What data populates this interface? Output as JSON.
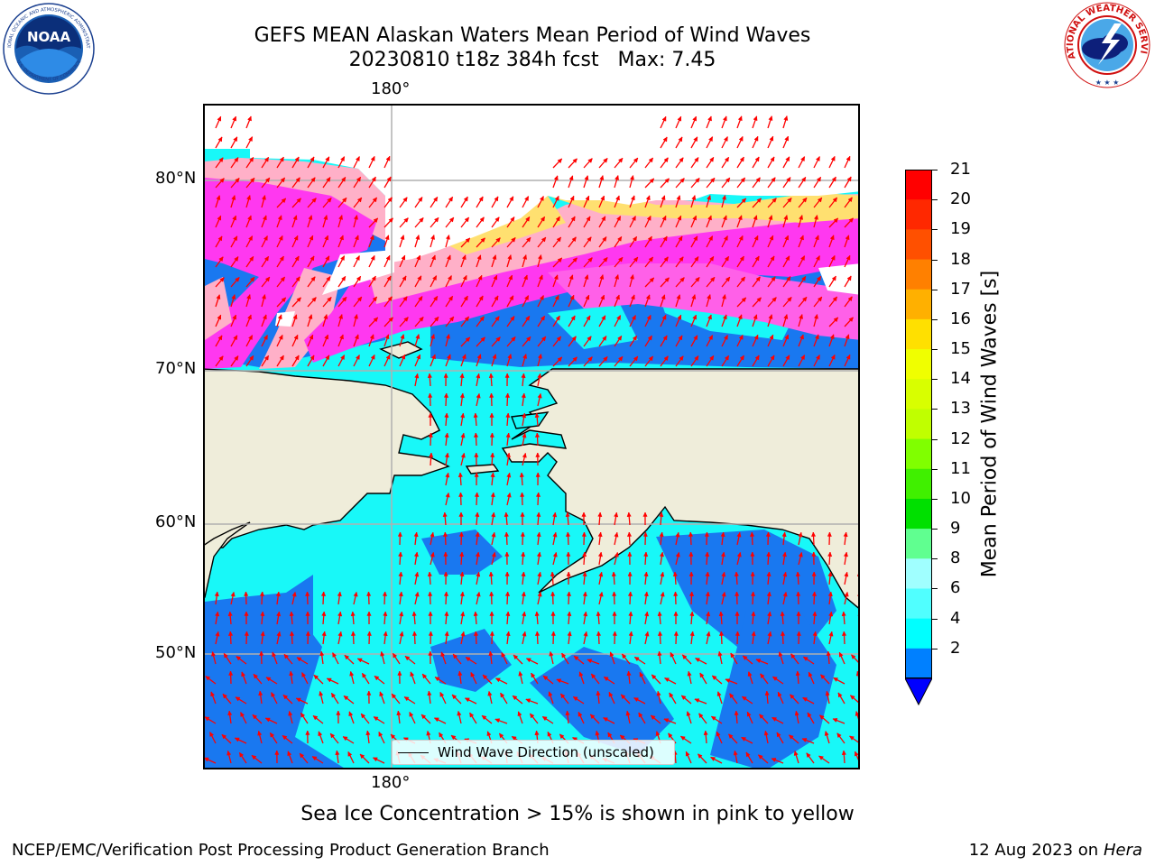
{
  "title_line1": "GEFS MEAN Alaskan Waters Mean Period of Wind Waves",
  "title_line2": "20230810 t18z 384h fcst   Max: 7.45",
  "lon_tick_top": "180°",
  "lon_tick_bottom": "180°",
  "lat_ticks": [
    "80°N",
    "70°N",
    "60°N",
    "50°N"
  ],
  "legend_label": "Wind Wave Direction (unscaled)",
  "colorbar": {
    "label": "Mean Period of Wind Waves [s]",
    "ticks": [
      "21",
      "20",
      "19",
      "18",
      "17",
      "16",
      "15",
      "14",
      "13",
      "12",
      "11",
      "10",
      "9",
      "8",
      "6",
      "4",
      "2"
    ],
    "colors": [
      "#ff0000",
      "#ff2800",
      "#ff5000",
      "#ff8000",
      "#ffb000",
      "#ffe000",
      "#f0ff00",
      "#d8ff00",
      "#c0ff00",
      "#80ff00",
      "#40f000",
      "#00e000",
      "#60ff90",
      "#a0ffff",
      "#50ffff",
      "#00ffff",
      "#0080ff"
    ],
    "extend_color": "#0000ff"
  },
  "caption": "Sea Ice Concentration > 15% is shown in pink to yellow",
  "footer_left": "NCEP/EMC/Verification Post Processing Product Generation Branch",
  "footer_right_date": "12 Aug 2023 on",
  "footer_right_machine": "Hera",
  "logos": {
    "noaa_text": "NOAA",
    "noaa_ring_top": "NATIONAL OCEANIC AND ATMOSPHERIC ADMINISTRATION",
    "noaa_ring_bottom": "U.S. DEPARTMENT OF COMMERCE",
    "nws_ring": "NATIONAL WEATHER SERVICE"
  },
  "map_colors": {
    "land": "#efedda",
    "ocean_dark": "#1978f0",
    "ocean_light": "#18f8f8",
    "ice_pink": "#ff60e8",
    "ice_magenta": "#ff38f0",
    "ice_peach": "#ffb0c8",
    "ice_yellow": "#ffe070",
    "arrow": "#ff0000",
    "grid": "#b0b0b0"
  }
}
